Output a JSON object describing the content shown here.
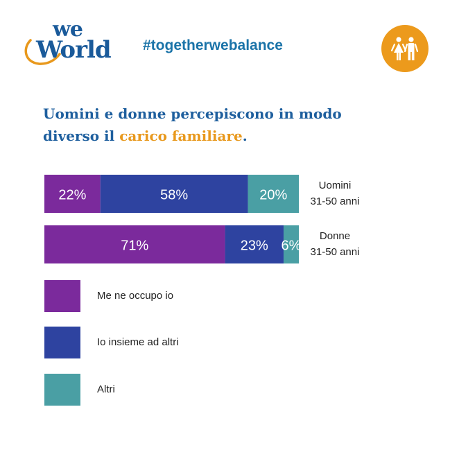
{
  "header": {
    "logo_top": "we",
    "logo_bottom": "World",
    "hashtag": "#togetherwebalance",
    "badge_icon": "people-icon"
  },
  "title": {
    "line1": "Uomini e donne percepiscono in modo",
    "line2_prefix": "diverso il ",
    "line2_highlight": "carico familiare",
    "line2_suffix": "."
  },
  "colors": {
    "me": "#7b2a9c",
    "insieme": "#2e43a0",
    "altri": "#4a9fa4",
    "title": "#1e5f9e",
    "accent": "#e8981c"
  },
  "chart_data": {
    "type": "bar",
    "orientation": "horizontal",
    "stacked": true,
    "normalized": true,
    "categories": [
      "Uomini\n31-50 anni",
      "Donne\n31-50 anni"
    ],
    "category_lines": [
      [
        "Uomini",
        "31-50 anni"
      ],
      [
        "Donne",
        "31-50 anni"
      ]
    ],
    "series": [
      {
        "name": "Me ne occupo io",
        "values": [
          22,
          71
        ],
        "labels": [
          "22%",
          "71%"
        ],
        "color": "#7b2a9c"
      },
      {
        "name": "Io insieme ad altri",
        "values": [
          58,
          23
        ],
        "labels": [
          "58%",
          "23%"
        ],
        "color": "#2e43a0"
      },
      {
        "name": "Altri",
        "values": [
          20,
          6
        ],
        "labels": [
          "20%",
          "6%"
        ],
        "color": "#4a9fa4"
      }
    ],
    "legend_position": "bottom-left",
    "title": "",
    "xlabel": "",
    "ylabel": "",
    "grid": false
  },
  "legend": [
    {
      "label": "Me ne occupo io",
      "color": "#7b2a9c"
    },
    {
      "label": "Io insieme ad altri",
      "color": "#2e43a0"
    },
    {
      "label": "Altri",
      "color": "#4a9fa4"
    }
  ]
}
